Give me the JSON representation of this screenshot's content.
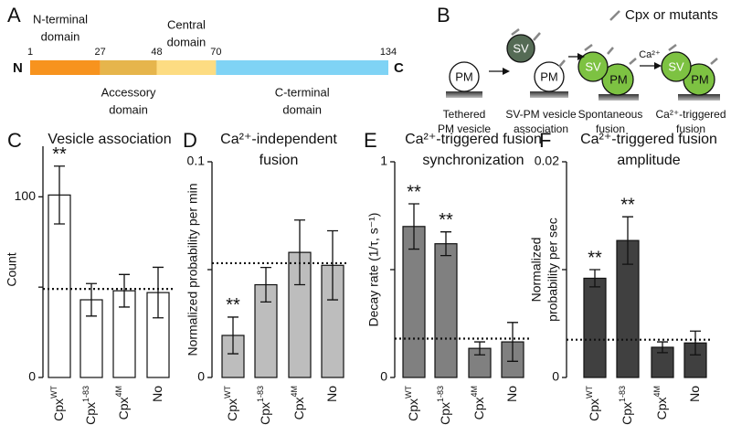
{
  "panel_a": {
    "label": "A",
    "residues": [
      1,
      27,
      48,
      70,
      134
    ],
    "n_label": "N",
    "c_label": "C",
    "domains": [
      {
        "name": [
          "N-terminal",
          "domain"
        ],
        "color": "#f7931e"
      },
      {
        "name": [
          "Accessory",
          "domain"
        ],
        "color": "#e6b54c"
      },
      {
        "name": [
          "Central",
          "domain"
        ],
        "color": "#fddc82"
      },
      {
        "name": [
          "C-terminal",
          "domain"
        ],
        "color": "#7fd3f5"
      }
    ]
  },
  "panel_b": {
    "label": "B",
    "legend": "Cpx or mutants",
    "pm": "PM",
    "sv": "SV",
    "calcium": "Ca²⁺",
    "stages": [
      [
        "Tethered",
        "PM vesicle"
      ],
      [
        "SV-PM vesicle",
        "association"
      ],
      [
        "Spontaneous",
        "fusion"
      ],
      [
        "Ca²⁺-triggered",
        "fusion"
      ]
    ]
  },
  "chart_data": [
    {
      "type": "bar",
      "panel": "C",
      "title": [
        "Vesicle association"
      ],
      "ylabel": [
        "Count"
      ],
      "categories": [
        "Cpx",
        "Cpx",
        "Cpx",
        "No"
      ],
      "category_superscripts": [
        "WT",
        "1-83",
        "4M",
        null
      ],
      "values": [
        101,
        43,
        48,
        47
      ],
      "errors": [
        16,
        9,
        9,
        14
      ],
      "significance": [
        "**",
        null,
        null,
        null
      ],
      "reference": 49,
      "color": "#ffffff",
      "ylim": [
        0,
        128
      ],
      "yticks": [
        0,
        100
      ],
      "yminorticks": [
        50
      ]
    },
    {
      "type": "bar",
      "panel": "D",
      "title": [
        "Ca²⁺-independent",
        "fusion"
      ],
      "ylabel": [
        "Normalized probability per min"
      ],
      "categories": [
        "Cpx",
        "Cpx",
        "Cpx",
        "No"
      ],
      "category_superscripts": [
        "WT",
        "1-83",
        "4M",
        null
      ],
      "values": [
        0.0195,
        0.043,
        0.058,
        0.052
      ],
      "errors": [
        0.0085,
        0.008,
        0.015,
        0.016
      ],
      "significance": [
        "**",
        null,
        null,
        null
      ],
      "reference": 0.053,
      "color": "#bdbdbd",
      "ylim": [
        0,
        0.1
      ],
      "yticks": [
        0,
        0.1
      ],
      "yminorticks": [
        0.05
      ]
    },
    {
      "type": "bar",
      "panel": "E",
      "title": [
        "Ca²⁺-triggered fusion",
        "synchronization"
      ],
      "ylabel": [
        "Decay rate (1/τ, s⁻¹)"
      ],
      "categories": [
        "Cpx",
        "Cpx",
        "Cpx",
        "No"
      ],
      "category_superscripts": [
        "WT",
        "1-83",
        "4M",
        null
      ],
      "values": [
        0.7,
        0.62,
        0.135,
        0.165
      ],
      "errors": [
        0.105,
        0.055,
        0.03,
        0.09
      ],
      "significance": [
        "**",
        "**",
        null,
        null
      ],
      "reference": 0.18,
      "color": "#808080",
      "ylim": [
        0,
        1
      ],
      "yticks": [
        0,
        1
      ],
      "yminorticks": [
        0.5
      ]
    },
    {
      "type": "bar",
      "panel": "F",
      "title": [
        "Ca²⁺-triggered fusion",
        "amplitude"
      ],
      "ylabel": [
        "Normalized",
        "probability per sec"
      ],
      "categories": [
        "Cpx",
        "Cpx",
        "Cpx",
        "No"
      ],
      "category_superscripts": [
        "WT",
        "1-83",
        "4M",
        null
      ],
      "values": [
        0.0092,
        0.0127,
        0.0028,
        0.0032
      ],
      "errors": [
        0.0008,
        0.0022,
        0.0005,
        0.0011
      ],
      "significance": [
        "**",
        "**",
        null,
        null
      ],
      "reference": 0.0035,
      "color": "#404040",
      "ylim": [
        0,
        0.02
      ],
      "yticks": [
        0,
        0.02
      ],
      "yminorticks": [
        0.01
      ]
    }
  ]
}
